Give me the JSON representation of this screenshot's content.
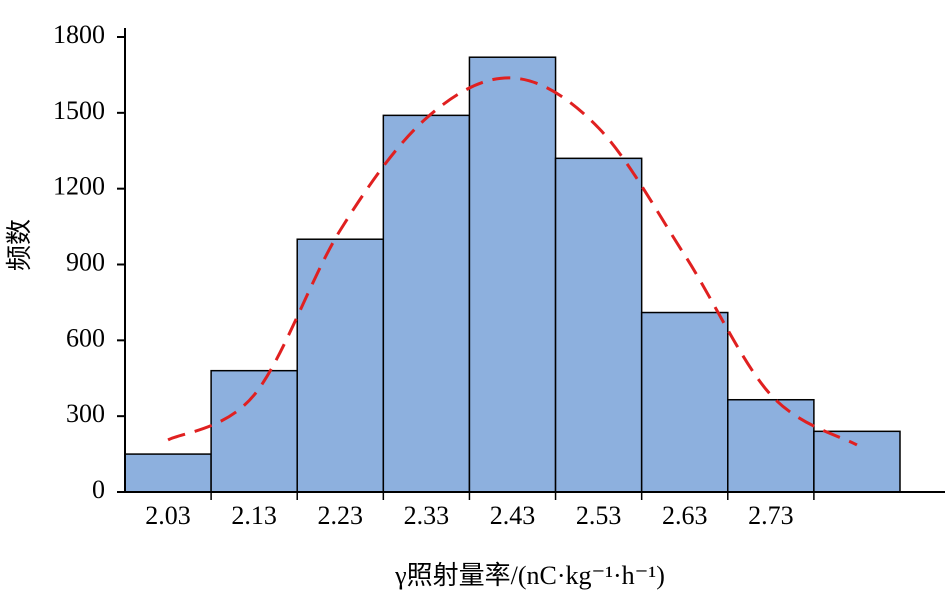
{
  "chart_data": {
    "type": "bar",
    "x_label": "γ照射量率/(nC·kg⁻¹·h⁻¹)",
    "y_label": "频数",
    "categories": [
      "2.03",
      "2.13",
      "2.23",
      "2.33",
      "2.43",
      "2.53",
      "2.63",
      "2.73",
      null
    ],
    "series": [
      {
        "type": "bar",
        "color": "#8db0de",
        "values": [
          150,
          480,
          1000,
          1490,
          1720,
          1320,
          710,
          365,
          240
        ]
      },
      {
        "type": "line",
        "color": "#e02020",
        "dashed": true,
        "values": [
          206,
          384,
          1036,
          1479,
          1638,
          1440,
          937,
          384,
          186
        ]
      }
    ],
    "ylim": [
      0,
      1800
    ],
    "yticks": [
      0,
      300,
      600,
      900,
      1200,
      1500,
      1800
    ],
    "grid": false
  }
}
